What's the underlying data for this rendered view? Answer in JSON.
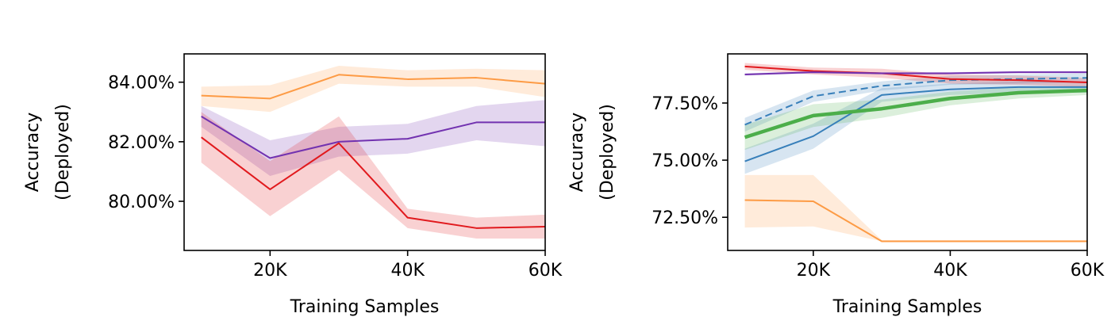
{
  "chart_data": [
    {
      "type": "line",
      "xlabel": "Training Samples",
      "ylabel_lines": [
        "Accuracy",
        "(Deployed)"
      ],
      "x": [
        10000,
        20000,
        30000,
        40000,
        50000,
        60000
      ],
      "xlim": [
        7500,
        60000
      ],
      "ylim": [
        78.35,
        84.95
      ],
      "xticks": [
        {
          "value": 20000,
          "label": "20K"
        },
        {
          "value": 40000,
          "label": "40K"
        },
        {
          "value": 60000,
          "label": "60K"
        }
      ],
      "yticks": [
        {
          "value": 80,
          "label": "80.00%"
        },
        {
          "value": 82,
          "label": "82.00%"
        },
        {
          "value": 84,
          "label": "84.00%"
        }
      ],
      "grid": false,
      "series": [
        {
          "color": "#fd9b45",
          "values": [
            83.55,
            83.45,
            84.25,
            84.1,
            84.15,
            83.95
          ],
          "lower": [
            83.2,
            83.0,
            83.95,
            83.85,
            83.85,
            83.5
          ],
          "upper": [
            83.85,
            83.9,
            84.55,
            84.4,
            84.45,
            84.4
          ],
          "dash": false,
          "width": 2
        },
        {
          "color": "#7232b0",
          "values": [
            82.85,
            81.45,
            82.0,
            82.1,
            82.65,
            82.65
          ],
          "lower": [
            82.5,
            80.85,
            81.5,
            81.6,
            82.05,
            81.85
          ],
          "upper": [
            83.2,
            82.05,
            82.5,
            82.6,
            83.2,
            83.4
          ],
          "dash": false,
          "width": 2
        },
        {
          "color": "#e1191d",
          "values": [
            82.15,
            80.4,
            81.95,
            79.45,
            79.1,
            79.15
          ],
          "lower": [
            81.3,
            79.5,
            81.05,
            79.1,
            78.75,
            78.75
          ],
          "upper": [
            83.0,
            81.35,
            82.85,
            79.75,
            79.45,
            79.55
          ],
          "dash": false,
          "width": 2
        }
      ]
    },
    {
      "type": "line",
      "xlabel": "Training Samples",
      "ylabel_lines": [
        "Accuracy",
        "(Deployed)"
      ],
      "x": [
        10000,
        20000,
        30000,
        40000,
        50000,
        60000
      ],
      "xlim": [
        7500,
        60000
      ],
      "ylim": [
        71.05,
        79.65
      ],
      "xticks": [
        {
          "value": 20000,
          "label": "20K"
        },
        {
          "value": 40000,
          "label": "40K"
        },
        {
          "value": 60000,
          "label": "60K"
        }
      ],
      "yticks": [
        {
          "value": 72.5,
          "label": "72.50%"
        },
        {
          "value": 75,
          "label": "75.00%"
        },
        {
          "value": 77.5,
          "label": "77.50%"
        }
      ],
      "grid": false,
      "series": [
        {
          "color": "#fd9b45",
          "values": [
            73.25,
            73.2,
            71.45,
            71.45,
            71.45,
            71.45
          ],
          "lower": [
            72.05,
            72.1,
            71.45,
            71.45,
            71.45,
            71.45
          ],
          "upper": [
            74.35,
            74.35,
            71.5,
            71.5,
            71.5,
            71.5
          ],
          "dash": false,
          "width": 2
        },
        {
          "color": "#377fba",
          "values": [
            74.95,
            76.05,
            77.85,
            78.1,
            78.2,
            78.2
          ],
          "lower": [
            74.4,
            75.5,
            77.55,
            77.85,
            77.95,
            77.95
          ],
          "upper": [
            75.5,
            76.6,
            78.15,
            78.35,
            78.45,
            78.45
          ],
          "dash": false,
          "width": 2
        },
        {
          "color": "#377fba",
          "values": [
            76.55,
            77.8,
            78.25,
            78.5,
            78.55,
            78.6
          ],
          "lower": [
            76.25,
            77.55,
            78.05,
            78.3,
            78.35,
            78.4
          ],
          "upper": [
            76.85,
            78.05,
            78.45,
            78.7,
            78.75,
            78.8
          ],
          "dash": true,
          "width": 2
        },
        {
          "color": "#4cae4a",
          "values": [
            76.0,
            76.95,
            77.25,
            77.7,
            77.95,
            78.05
          ],
          "lower": [
            75.45,
            76.45,
            76.85,
            77.4,
            77.7,
            77.85
          ],
          "upper": [
            76.55,
            77.45,
            77.65,
            78.0,
            78.2,
            78.25
          ],
          "dash": false,
          "width": 4.5
        },
        {
          "color": "#e1191d",
          "values": [
            79.1,
            78.9,
            78.8,
            78.55,
            78.5,
            78.4
          ],
          "lower": [
            78.95,
            78.75,
            78.6,
            78.35,
            78.3,
            78.2
          ],
          "upper": [
            79.25,
            79.05,
            79.0,
            78.75,
            78.7,
            78.6
          ],
          "dash": false,
          "width": 2
        },
        {
          "color": "#7232b0",
          "values": [
            78.75,
            78.85,
            78.8,
            78.8,
            78.85,
            78.85
          ],
          "lower": [
            78.7,
            78.8,
            78.75,
            78.75,
            78.8,
            78.8
          ],
          "upper": [
            78.8,
            78.9,
            78.85,
            78.85,
            78.9,
            78.9
          ],
          "dash": false,
          "width": 2
        }
      ]
    }
  ]
}
